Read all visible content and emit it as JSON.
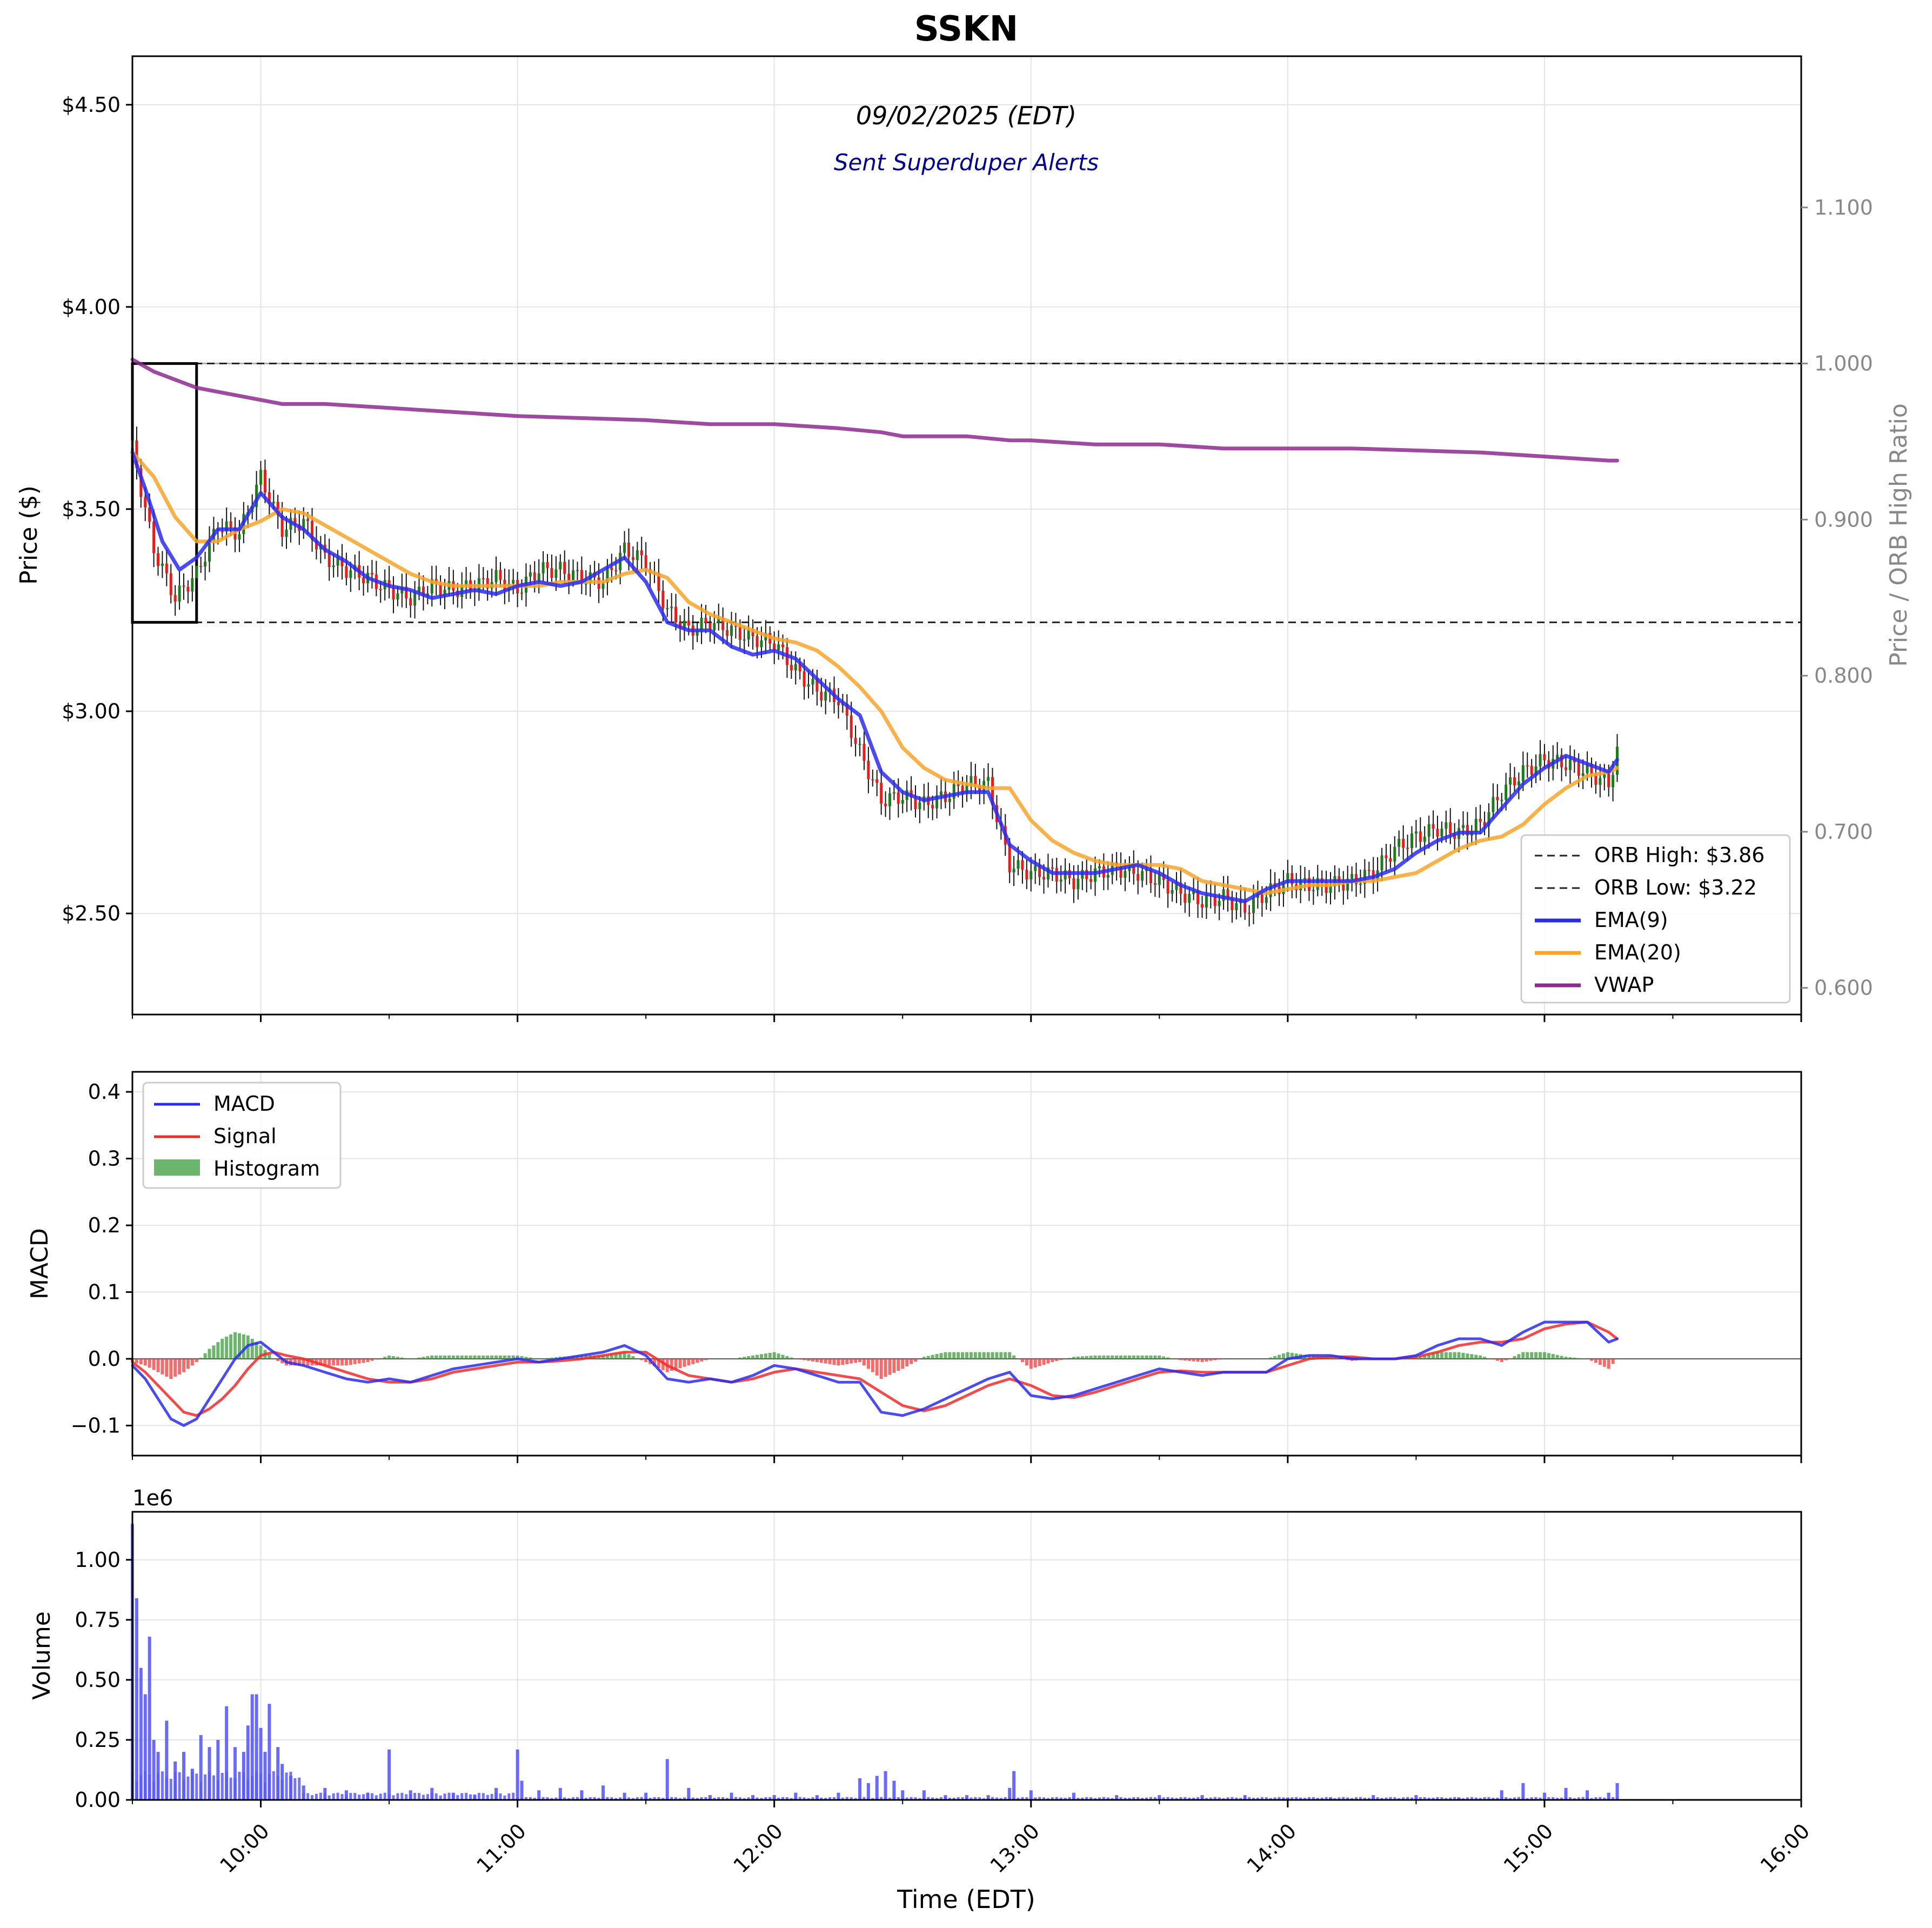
{
  "figure": {
    "title": "SSKN",
    "date_label": "09/02/2025 (EDT)",
    "alert_label": "Sent Superduper Alerts",
    "x_label": "Time (EDT)",
    "x_ticks": [
      "10:00",
      "11:00",
      "12:00",
      "13:00",
      "14:00",
      "15:00",
      "16:00"
    ]
  },
  "chart_data": [
    {
      "type": "line",
      "title": "SSKN",
      "x_range": [
        "09:30",
        "16:00"
      ],
      "ylabel": "Price ($)",
      "ylim": [
        2.25,
        4.62
      ],
      "y_ticks": [
        "$2.50",
        "$3.00",
        "$3.50",
        "$4.00",
        "$4.50"
      ],
      "secondary_axis": {
        "label": "Price / ORB High Ratio",
        "ticks": [
          "0.600",
          "0.700",
          "0.800",
          "0.900",
          "1.000",
          "1.100"
        ],
        "ref_line": 1.0
      },
      "orb": {
        "start": "09:30",
        "end": "09:45",
        "high": 3.86,
        "low": 3.22
      },
      "legend": [
        "ORB High: $3.86",
        "ORB Low: $3.22",
        "EMA(9)",
        "EMA(20)",
        "VWAP"
      ],
      "legend_position": "lower right",
      "grid": true,
      "colors": {
        "ema9": "#2b2bf0",
        "ema20": "#f7a52b",
        "vwap": "#8e2a90",
        "up": "#1f7a1f",
        "down": "#e0201c"
      },
      "candles_close": {
        "x": [
          "09:30",
          "09:35",
          "09:40",
          "09:45",
          "09:50",
          "09:55",
          "10:00",
          "10:05",
          "10:10",
          "10:15",
          "10:20",
          "10:25",
          "10:30",
          "10:35",
          "10:40",
          "10:45",
          "10:50",
          "10:55",
          "11:00",
          "11:05",
          "11:10",
          "11:15",
          "11:20",
          "11:25",
          "11:30",
          "11:35",
          "11:40",
          "11:45",
          "11:50",
          "11:55",
          "12:00",
          "12:05",
          "12:10",
          "12:15",
          "12:20",
          "12:25",
          "12:30",
          "12:35",
          "12:40",
          "12:45",
          "12:50",
          "12:55",
          "13:00",
          "13:05",
          "13:10",
          "13:15",
          "13:20",
          "13:25",
          "13:30",
          "13:35",
          "13:40",
          "13:45",
          "13:50",
          "13:55",
          "14:00",
          "14:05",
          "14:10",
          "14:15",
          "14:20",
          "14:25",
          "14:30",
          "14:35",
          "14:40",
          "14:45",
          "14:50",
          "14:55",
          "15:00",
          "15:05",
          "15:10",
          "15:15",
          "15:17"
        ],
        "values": [
          3.65,
          3.4,
          3.28,
          3.34,
          3.46,
          3.44,
          3.58,
          3.45,
          3.47,
          3.38,
          3.35,
          3.33,
          3.3,
          3.28,
          3.31,
          3.3,
          3.31,
          3.33,
          3.3,
          3.35,
          3.35,
          3.33,
          3.32,
          3.4,
          3.37,
          3.25,
          3.2,
          3.22,
          3.2,
          3.18,
          3.17,
          3.1,
          3.05,
          3.03,
          2.9,
          2.78,
          2.79,
          2.77,
          2.79,
          2.82,
          2.82,
          2.62,
          2.6,
          2.6,
          2.58,
          2.6,
          2.61,
          2.6,
          2.58,
          2.55,
          2.53,
          2.54,
          2.51,
          2.55,
          2.58,
          2.57,
          2.57,
          2.58,
          2.6,
          2.66,
          2.69,
          2.71,
          2.7,
          2.72,
          2.8,
          2.85,
          2.88,
          2.87,
          2.85,
          2.82,
          2.9
        ]
      },
      "ema9": {
        "x": [
          "09:30",
          "09:33",
          "09:37",
          "09:41",
          "09:45",
          "09:50",
          "09:55",
          "10:00",
          "10:05",
          "10:10",
          "10:15",
          "10:20",
          "10:25",
          "10:30",
          "10:35",
          "10:40",
          "10:45",
          "10:50",
          "10:55",
          "11:00",
          "11:05",
          "11:10",
          "11:15",
          "11:20",
          "11:25",
          "11:30",
          "11:35",
          "11:40",
          "11:45",
          "11:50",
          "11:55",
          "12:00",
          "12:05",
          "12:10",
          "12:15",
          "12:20",
          "12:25",
          "12:30",
          "12:35",
          "12:40",
          "12:45",
          "12:50",
          "12:55",
          "13:00",
          "13:05",
          "13:10",
          "13:15",
          "13:20",
          "13:25",
          "13:30",
          "13:35",
          "13:40",
          "13:45",
          "13:50",
          "13:55",
          "14:00",
          "14:05",
          "14:10",
          "14:15",
          "14:20",
          "14:25",
          "14:30",
          "14:35",
          "14:40",
          "14:45",
          "14:50",
          "14:55",
          "15:00",
          "15:05",
          "15:10",
          "15:15",
          "15:17"
        ],
        "values": [
          3.64,
          3.55,
          3.42,
          3.35,
          3.38,
          3.45,
          3.45,
          3.54,
          3.48,
          3.45,
          3.4,
          3.37,
          3.33,
          3.31,
          3.3,
          3.28,
          3.29,
          3.3,
          3.29,
          3.31,
          3.32,
          3.31,
          3.32,
          3.35,
          3.38,
          3.32,
          3.22,
          3.2,
          3.2,
          3.16,
          3.14,
          3.15,
          3.13,
          3.08,
          3.03,
          2.99,
          2.85,
          2.8,
          2.78,
          2.79,
          2.8,
          2.8,
          2.67,
          2.63,
          2.6,
          2.6,
          2.6,
          2.61,
          2.62,
          2.6,
          2.57,
          2.55,
          2.54,
          2.53,
          2.56,
          2.58,
          2.58,
          2.58,
          2.58,
          2.59,
          2.61,
          2.65,
          2.68,
          2.7,
          2.7,
          2.76,
          2.82,
          2.86,
          2.89,
          2.87,
          2.85,
          2.88
        ]
      },
      "ema20": {
        "x": [
          "09:30",
          "09:35",
          "09:40",
          "09:45",
          "09:50",
          "09:55",
          "10:00",
          "10:05",
          "10:10",
          "10:15",
          "10:20",
          "10:25",
          "10:30",
          "10:35",
          "10:40",
          "10:45",
          "10:50",
          "10:55",
          "11:00",
          "11:05",
          "11:10",
          "11:15",
          "11:20",
          "11:25",
          "11:30",
          "11:35",
          "11:40",
          "11:45",
          "11:50",
          "11:55",
          "12:00",
          "12:05",
          "12:10",
          "12:15",
          "12:20",
          "12:25",
          "12:30",
          "12:35",
          "12:40",
          "12:45",
          "12:50",
          "12:55",
          "13:00",
          "13:05",
          "13:10",
          "13:15",
          "13:20",
          "13:25",
          "13:30",
          "13:35",
          "13:40",
          "13:45",
          "13:50",
          "13:55",
          "14:00",
          "14:05",
          "14:10",
          "14:15",
          "14:20",
          "14:25",
          "14:30",
          "14:35",
          "14:40",
          "14:45",
          "14:50",
          "14:55",
          "15:00",
          "15:05",
          "15:10",
          "15:15",
          "15:17"
        ],
        "values": [
          3.64,
          3.58,
          3.48,
          3.42,
          3.42,
          3.45,
          3.47,
          3.5,
          3.49,
          3.46,
          3.43,
          3.4,
          3.37,
          3.34,
          3.32,
          3.31,
          3.31,
          3.31,
          3.31,
          3.31,
          3.32,
          3.32,
          3.32,
          3.34,
          3.35,
          3.33,
          3.27,
          3.24,
          3.22,
          3.2,
          3.18,
          3.17,
          3.15,
          3.11,
          3.06,
          3.0,
          2.91,
          2.86,
          2.83,
          2.82,
          2.81,
          2.81,
          2.73,
          2.68,
          2.65,
          2.63,
          2.62,
          2.62,
          2.62,
          2.61,
          2.58,
          2.57,
          2.56,
          2.55,
          2.56,
          2.57,
          2.57,
          2.58,
          2.58,
          2.59,
          2.6,
          2.63,
          2.66,
          2.68,
          2.69,
          2.72,
          2.77,
          2.81,
          2.84,
          2.85,
          2.86
        ]
      },
      "vwap": {
        "x": [
          "09:30",
          "09:35",
          "09:40",
          "09:45",
          "09:50",
          "09:55",
          "10:00",
          "10:05",
          "10:15",
          "10:30",
          "10:45",
          "11:00",
          "11:30",
          "11:45",
          "12:00",
          "12:15",
          "12:25",
          "12:30",
          "12:45",
          "12:55",
          "13:00",
          "13:15",
          "13:30",
          "13:45",
          "14:00",
          "14:15",
          "14:30",
          "14:45",
          "15:00",
          "15:15",
          "15:17"
        ],
        "values": [
          3.87,
          3.84,
          3.82,
          3.8,
          3.79,
          3.78,
          3.77,
          3.76,
          3.76,
          3.75,
          3.74,
          3.73,
          3.72,
          3.71,
          3.71,
          3.7,
          3.69,
          3.68,
          3.68,
          3.67,
          3.67,
          3.66,
          3.66,
          3.65,
          3.65,
          3.65,
          3.645,
          3.64,
          3.63,
          3.62,
          3.62
        ]
      }
    },
    {
      "type": "line",
      "ylabel": "MACD",
      "ylim": [
        -0.145,
        0.43
      ],
      "y_ticks": [
        "0.4",
        "0.3",
        "0.2",
        "0.1",
        "0.0",
        "−0.1"
      ],
      "legend": [
        "MACD",
        "Signal",
        "Histogram"
      ],
      "legend_position": "upper left",
      "grid": true,
      "colors": {
        "macd": "#2b2bf0",
        "signal": "#f02b2b",
        "hist_pos": "#3c9c3c",
        "hist_neg": "#f03c3c"
      },
      "x": [
        "09:30",
        "09:33",
        "09:36",
        "09:39",
        "09:42",
        "09:45",
        "09:48",
        "09:51",
        "09:54",
        "09:57",
        "10:00",
        "10:03",
        "10:06",
        "10:10",
        "10:15",
        "10:20",
        "10:25",
        "10:30",
        "10:35",
        "10:40",
        "10:45",
        "10:50",
        "10:55",
        "11:00",
        "11:05",
        "11:10",
        "11:15",
        "11:20",
        "11:25",
        "11:30",
        "11:35",
        "11:40",
        "11:45",
        "11:50",
        "11:55",
        "12:00",
        "12:05",
        "12:10",
        "12:15",
        "12:20",
        "12:25",
        "12:30",
        "12:35",
        "12:40",
        "12:45",
        "12:50",
        "12:55",
        "13:00",
        "13:05",
        "13:10",
        "13:15",
        "13:20",
        "13:25",
        "13:30",
        "13:35",
        "13:40",
        "13:45",
        "13:50",
        "13:55",
        "14:00",
        "14:05",
        "14:10",
        "14:15",
        "14:20",
        "14:25",
        "14:30",
        "14:35",
        "14:40",
        "14:45",
        "14:50",
        "14:55",
        "15:00",
        "15:05",
        "15:10",
        "15:15",
        "15:17"
      ],
      "series": [
        {
          "name": "MACD",
          "values": [
            -0.01,
            -0.03,
            -0.06,
            -0.09,
            -0.1,
            -0.09,
            -0.06,
            -0.03,
            0.0,
            0.02,
            0.025,
            0.01,
            -0.005,
            -0.01,
            -0.02,
            -0.03,
            -0.035,
            -0.03,
            -0.035,
            -0.025,
            -0.015,
            -0.01,
            -0.005,
            0.0,
            -0.005,
            0.0,
            0.005,
            0.01,
            0.02,
            0.005,
            -0.03,
            -0.035,
            -0.03,
            -0.035,
            -0.025,
            -0.01,
            -0.015,
            -0.025,
            -0.035,
            -0.035,
            -0.08,
            -0.085,
            -0.075,
            -0.06,
            -0.045,
            -0.03,
            -0.02,
            -0.055,
            -0.06,
            -0.055,
            -0.045,
            -0.035,
            -0.025,
            -0.015,
            -0.02,
            -0.025,
            -0.02,
            -0.02,
            -0.02,
            0.0,
            0.005,
            0.005,
            0.0,
            0.0,
            0.0,
            0.005,
            0.02,
            0.03,
            0.03,
            0.02,
            0.04,
            0.055,
            0.055,
            0.055,
            0.025,
            0.03
          ]
        },
        {
          "name": "Signal",
          "values": [
            -0.005,
            -0.02,
            -0.04,
            -0.06,
            -0.08,
            -0.085,
            -0.075,
            -0.06,
            -0.04,
            -0.015,
            0.005,
            0.01,
            0.005,
            0.0,
            -0.01,
            -0.02,
            -0.03,
            -0.035,
            -0.035,
            -0.03,
            -0.02,
            -0.015,
            -0.01,
            -0.005,
            -0.005,
            -0.003,
            0.0,
            0.005,
            0.01,
            0.01,
            -0.01,
            -0.025,
            -0.03,
            -0.035,
            -0.03,
            -0.02,
            -0.015,
            -0.02,
            -0.025,
            -0.03,
            -0.05,
            -0.07,
            -0.078,
            -0.07,
            -0.055,
            -0.04,
            -0.03,
            -0.04,
            -0.055,
            -0.058,
            -0.05,
            -0.04,
            -0.03,
            -0.02,
            -0.018,
            -0.02,
            -0.02,
            -0.02,
            -0.02,
            -0.01,
            0.0,
            0.003,
            0.003,
            0.0,
            0.0,
            0.003,
            0.01,
            0.02,
            0.025,
            0.025,
            0.03,
            0.045,
            0.052,
            0.055,
            0.04,
            0.03
          ]
        },
        {
          "name": "Histogram",
          "values": [
            -0.005,
            -0.01,
            -0.02,
            -0.03,
            -0.02,
            -0.005,
            0.015,
            0.03,
            0.04,
            0.035,
            0.02,
            0.0,
            -0.01,
            -0.01,
            -0.01,
            -0.01,
            -0.005,
            0.005,
            0.0,
            0.005,
            0.005,
            0.005,
            0.005,
            0.005,
            0.0,
            0.003,
            0.005,
            0.005,
            0.01,
            -0.005,
            -0.02,
            -0.01,
            0.0,
            0.0,
            0.005,
            0.01,
            0.0,
            -0.005,
            -0.01,
            -0.005,
            -0.03,
            -0.015,
            0.003,
            0.01,
            0.01,
            0.01,
            0.01,
            -0.015,
            -0.005,
            0.003,
            0.005,
            0.005,
            0.005,
            0.005,
            -0.002,
            -0.005,
            0.0,
            0.0,
            0.0,
            0.01,
            0.005,
            0.002,
            -0.003,
            0.0,
            0.0,
            0.002,
            0.01,
            0.01,
            0.005,
            -0.005,
            0.01,
            0.01,
            0.003,
            0.0,
            -0.015,
            0.0
          ]
        }
      ]
    },
    {
      "type": "bar",
      "ylabel": "Volume",
      "y_offset_label": "1e6",
      "ylim": [
        0,
        1.2
      ],
      "y_ticks": [
        "0.00",
        "0.25",
        "0.50",
        "0.75",
        "1.00"
      ],
      "grid": true,
      "colors": {
        "bar": "#5a5aff"
      },
      "x": [
        "09:30",
        "09:31",
        "09:32",
        "09:33",
        "09:34",
        "09:35",
        "09:36",
        "09:38",
        "09:40",
        "09:42",
        "09:44",
        "09:46",
        "09:48",
        "09:50",
        "09:52",
        "09:54",
        "09:56",
        "09:57",
        "09:58",
        "09:59",
        "10:00",
        "10:01",
        "10:02",
        "10:04",
        "10:05",
        "10:07",
        "10:10",
        "10:15",
        "10:20",
        "10:25",
        "10:30",
        "10:35",
        "10:40",
        "10:45",
        "10:50",
        "10:55",
        "11:00",
        "11:01",
        "11:05",
        "11:10",
        "11:15",
        "11:20",
        "11:25",
        "11:30",
        "11:35",
        "11:40",
        "11:45",
        "11:50",
        "11:55",
        "12:00",
        "12:05",
        "12:10",
        "12:15",
        "12:20",
        "12:22",
        "12:24",
        "12:26",
        "12:28",
        "12:30",
        "12:35",
        "12:40",
        "12:45",
        "12:50",
        "12:55",
        "12:56",
        "13:00",
        "13:10",
        "13:20",
        "13:30",
        "13:40",
        "13:50",
        "14:00",
        "14:10",
        "14:20",
        "14:30",
        "14:40",
        "14:50",
        "14:55",
        "15:00",
        "15:05",
        "15:10",
        "15:15",
        "15:17"
      ],
      "values": [
        1.15,
        0.84,
        0.55,
        0.44,
        0.68,
        0.25,
        0.2,
        0.33,
        0.16,
        0.2,
        0.13,
        0.27,
        0.22,
        0.25,
        0.39,
        0.22,
        0.2,
        0.31,
        0.44,
        0.44,
        0.3,
        0.2,
        0.4,
        0.22,
        0.15,
        0.1,
        0.06,
        0.05,
        0.04,
        0.03,
        0.21,
        0.04,
        0.05,
        0.03,
        0.02,
        0.05,
        0.21,
        0.08,
        0.04,
        0.05,
        0.04,
        0.06,
        0.03,
        0.03,
        0.17,
        0.05,
        0.02,
        0.03,
        0.02,
        0.02,
        0.03,
        0.02,
        0.03,
        0.09,
        0.07,
        0.1,
        0.12,
        0.08,
        0.04,
        0.04,
        0.02,
        0.02,
        0.02,
        0.05,
        0.12,
        0.04,
        0.03,
        0.02,
        0.02,
        0.02,
        0.02,
        0.01,
        0.01,
        0.02,
        0.02,
        0.01,
        0.04,
        0.07,
        0.03,
        0.05,
        0.04,
        0.03,
        0.07
      ]
    }
  ]
}
